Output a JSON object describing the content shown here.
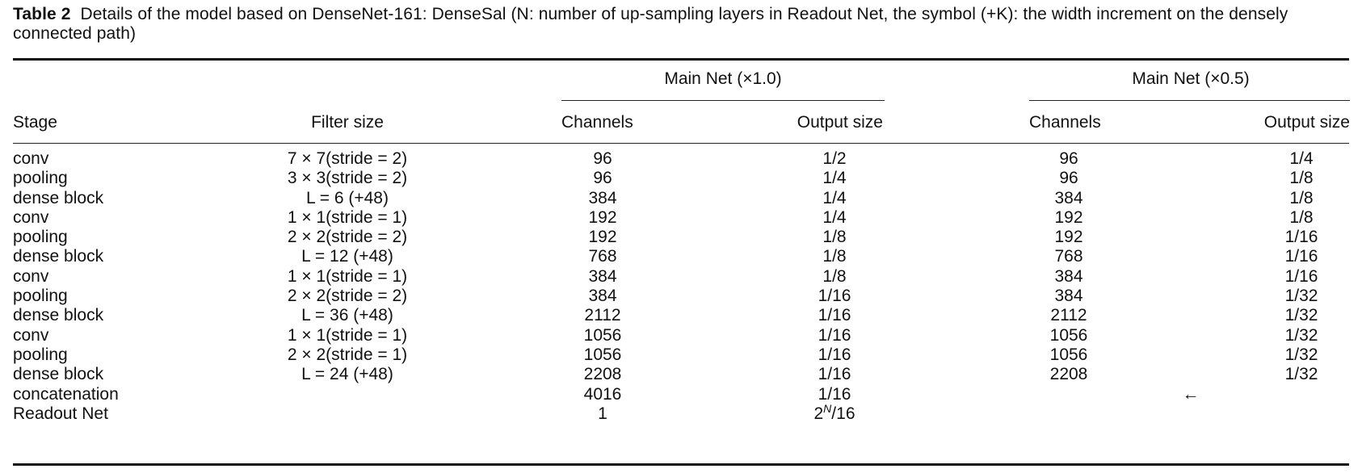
{
  "caption": {
    "label": "Table 2",
    "text": "Details of the model based on DenseNet-161: DenseSal (N: number of up-sampling layers in Readout Net, the symbol (+K): the width increment on the densely connected path)"
  },
  "header": {
    "stage": "Stage",
    "filter_size": "Filter size",
    "group1": "Main Net (×1.0)",
    "group2": "Main Net (×0.5)",
    "channels1": "Channels",
    "output_size1": "Output size",
    "channels2": "Channels",
    "output_size2": "Output size"
  },
  "rows": [
    {
      "stage": "conv",
      "filter": "7 × 7(stride = 2)",
      "ch1": "96",
      "os1": "1/2",
      "ch2": "96",
      "os2": "1/4"
    },
    {
      "stage": "pooling",
      "filter": "3 × 3(stride = 2)",
      "ch1": "96",
      "os1": "1/4",
      "ch2": "96",
      "os2": "1/8"
    },
    {
      "stage": "dense block",
      "filter": "L = 6 (+48)",
      "ch1": "384",
      "os1": "1/4",
      "ch2": "384",
      "os2": "1/8"
    },
    {
      "stage": "conv",
      "filter": "1 × 1(stride = 1)",
      "ch1": "192",
      "os1": "1/4",
      "ch2": "192",
      "os2": "1/8"
    },
    {
      "stage": "pooling",
      "filter": "2 × 2(stride = 2)",
      "ch1": "192",
      "os1": "1/8",
      "ch2": "192",
      "os2": "1/16"
    },
    {
      "stage": "dense block",
      "filter": "L = 12 (+48)",
      "ch1": "768",
      "os1": "1/8",
      "ch2": "768",
      "os2": "1/16"
    },
    {
      "stage": "conv",
      "filter": "1 × 1(stride = 1)",
      "ch1": "384",
      "os1": "1/8",
      "ch2": "384",
      "os2": "1/16"
    },
    {
      "stage": "pooling",
      "filter": "2 × 2(stride = 2)",
      "ch1": "384",
      "os1": "1/16",
      "ch2": "384",
      "os2": "1/32"
    },
    {
      "stage": "dense block",
      "filter": "L = 36 (+48)",
      "ch1": "2112",
      "os1": "1/16",
      "ch2": "2112",
      "os2": "1/32"
    },
    {
      "stage": "conv",
      "filter": "1 × 1(stride = 1)",
      "ch1": "1056",
      "os1": "1/16",
      "ch2": "1056",
      "os2": "1/32"
    },
    {
      "stage": "pooling",
      "filter": "2 × 2(stride = 1)",
      "ch1": "1056",
      "os1": "1/16",
      "ch2": "1056",
      "os2": "1/32"
    },
    {
      "stage": "dense block",
      "filter": "L = 24 (+48)",
      "ch1": "2208",
      "os1": "1/16",
      "ch2": "2208",
      "os2": "1/32"
    },
    {
      "stage": "concatenation",
      "filter": "",
      "ch1": "4016",
      "os1": "1/16",
      "ch2": "",
      "os2": "",
      "arrow": "←"
    },
    {
      "stage": "Readout Net",
      "filter": "",
      "ch1": "1",
      "os1_base": "2",
      "os1_sup": "N",
      "os1_tail": "/16",
      "ch2": "",
      "os2": ""
    }
  ]
}
